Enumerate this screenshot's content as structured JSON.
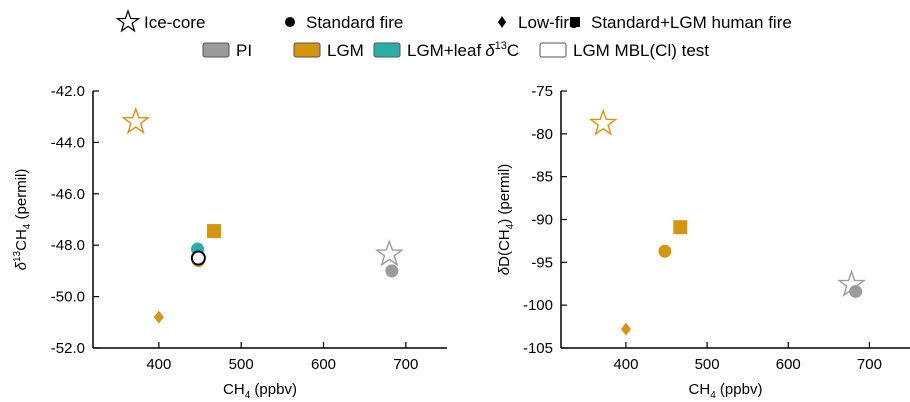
{
  "legend": {
    "row1": [
      {
        "symbol": "star",
        "label": "Ice-core"
      },
      {
        "symbol": "circle",
        "label": "Standard fire"
      },
      {
        "symbol": "diamond",
        "label": "Low-fire"
      },
      {
        "symbol": "square",
        "label": "Standard+LGM human fire"
      }
    ],
    "row2": [
      {
        "swatch": "PI",
        "label": "PI",
        "color": "#9b9b9b"
      },
      {
        "swatch": "LGM",
        "label": "LGM",
        "color": "#d4960f"
      },
      {
        "swatch": "LGM+leaf",
        "label": "LGM+leaf",
        "label_suffix": "δ13C",
        "color": "#2aaea8"
      },
      {
        "swatch": "LGM MBL(Cl) test",
        "label": "LGM MBL(Cl) test",
        "color": "#ffffff"
      }
    ]
  },
  "colors": {
    "PI": "#9b9b9b",
    "LGM": "#d4960f",
    "LGM+leaf": "#2aaea8",
    "LGM MBL(Cl) test": "#ffffff",
    "axis": "#000000"
  },
  "chart_data": [
    {
      "type": "scatter",
      "xlabel_main": "CH",
      "xlabel_sub": "4",
      "xlabel_tail": " (ppbv)",
      "ylabel": "δ13CH4 (permil)",
      "ylabel_parts": [
        {
          "t": "δ",
          "style": "italic"
        },
        {
          "t": "13",
          "style": "sup"
        },
        {
          "t": "CH",
          "style": "normal"
        },
        {
          "t": "4",
          "style": "sub"
        },
        {
          "t": " (permil)",
          "style": "normal"
        }
      ],
      "xlim": [
        320,
        750
      ],
      "ylim": [
        -52.0,
        -42.0
      ],
      "xticks": [
        400,
        500,
        600,
        700
      ],
      "yticks": [
        -52.0,
        -50.0,
        -48.0,
        -46.0,
        -44.0,
        -42.0
      ],
      "ytick_labels": [
        "-52.0",
        "-50.0",
        "-48.0",
        "-46.0",
        "-44.0",
        "-42.0"
      ],
      "grid": false,
      "points": [
        {
          "marker": "star",
          "scenario": "LGM",
          "x": 372,
          "y": -43.2
        },
        {
          "marker": "star",
          "scenario": "PI",
          "x": 680,
          "y": -48.35
        },
        {
          "marker": "circle",
          "scenario": "PI",
          "x": 683,
          "y": -49.0
        },
        {
          "marker": "circle",
          "scenario": "LGM",
          "x": 448,
          "y": -48.6
        },
        {
          "marker": "circle",
          "scenario": "LGM+leaf",
          "x": 447,
          "y": -48.15
        },
        {
          "marker": "circle",
          "scenario": "LGM MBL(Cl) test",
          "x": 448,
          "y": -48.5
        },
        {
          "marker": "diamond",
          "scenario": "LGM",
          "x": 400,
          "y": -50.8
        },
        {
          "marker": "square",
          "scenario": "LGM",
          "x": 467,
          "y": -47.45
        }
      ]
    },
    {
      "type": "scatter",
      "xlabel_main": "CH",
      "xlabel_sub": "4",
      "xlabel_tail": " (ppbv)",
      "ylabel": "δD(CH4) (permil)",
      "ylabel_parts": [
        {
          "t": "δ",
          "style": "italic"
        },
        {
          "t": "D(CH",
          "style": "normal"
        },
        {
          "t": "4",
          "style": "sub"
        },
        {
          "t": ") (permil)",
          "style": "normal"
        }
      ],
      "xlim": [
        320,
        750
      ],
      "ylim": [
        -105,
        -75
      ],
      "xticks": [
        400,
        500,
        600,
        700
      ],
      "yticks": [
        -105,
        -100,
        -95,
        -90,
        -85,
        -80,
        -75
      ],
      "ytick_labels": [
        "-105",
        "-100",
        "-95",
        "-90",
        "-85",
        "-80",
        "-75"
      ],
      "grid": false,
      "points": [
        {
          "marker": "star",
          "scenario": "LGM",
          "x": 372,
          "y": -78.8
        },
        {
          "marker": "star",
          "scenario": "PI",
          "x": 678,
          "y": -97.6
        },
        {
          "marker": "circle",
          "scenario": "PI",
          "x": 683,
          "y": -98.4
        },
        {
          "marker": "circle",
          "scenario": "LGM",
          "x": 448,
          "y": -93.7
        },
        {
          "marker": "diamond",
          "scenario": "LGM",
          "x": 400,
          "y": -102.8
        },
        {
          "marker": "square",
          "scenario": "LGM",
          "x": 467,
          "y": -90.9
        }
      ]
    }
  ]
}
